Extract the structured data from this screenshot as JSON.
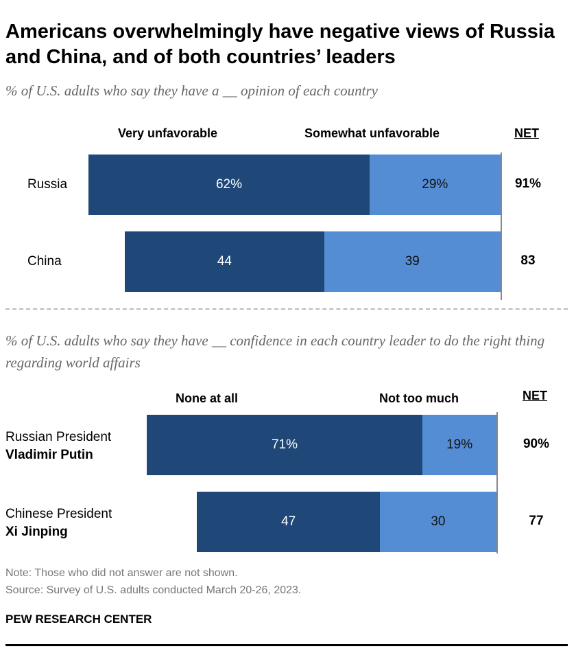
{
  "title": "Americans overwhelmingly have negative views of Russia and China, and of both countries’ leaders",
  "chart_data": [
    {
      "type": "bar",
      "stacked": true,
      "orientation": "horizontal",
      "subtitle": "% of U.S. adults who say they have a __ opinion of each country",
      "series": [
        {
          "name": "Very unfavorable",
          "values": [
            62,
            44
          ],
          "labels": [
            "62%",
            "44"
          ]
        },
        {
          "name": "Somewhat unfavorable",
          "values": [
            29,
            39
          ],
          "labels": [
            "29%",
            "39"
          ]
        }
      ],
      "net_header": "NET",
      "net": [
        "91%",
        "83"
      ],
      "net_values": [
        91,
        83
      ],
      "categories": [
        {
          "line1": "Russia",
          "line2": ""
        },
        {
          "line1": "China",
          "line2": ""
        }
      ]
    },
    {
      "type": "bar",
      "stacked": true,
      "orientation": "horizontal",
      "subtitle": "% of U.S. adults who say they have __ confidence in each country leader to do the right thing regarding world affairs",
      "series": [
        {
          "name": "None at all",
          "values": [
            71,
            47
          ],
          "labels": [
            "71%",
            "47"
          ]
        },
        {
          "name": "Not too much",
          "values": [
            19,
            30
          ],
          "labels": [
            "19%",
            "30"
          ]
        }
      ],
      "net_header": "NET",
      "net": [
        "90%",
        "77"
      ],
      "net_values": [
        90,
        77
      ],
      "categories": [
        {
          "line1": "Russian President",
          "line2": "Vladimir Putin"
        },
        {
          "line1": "Chinese President",
          "line2": "Xi Jinping"
        }
      ]
    }
  ],
  "notes": {
    "note": "Note: Those who did not answer are not shown.",
    "source": "Source: Survey of U.S. adults conducted March 20-26, 2023.",
    "brand": "PEW RESEARCH CENTER"
  },
  "colors": {
    "dark": "#1f4878",
    "light": "#558dd4"
  }
}
